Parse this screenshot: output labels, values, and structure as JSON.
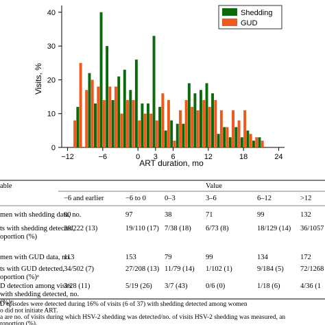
{
  "chart_data": {
    "type": "bar",
    "x": [
      -11,
      -10,
      -9,
      -8,
      -7,
      -6,
      -5,
      -4,
      -3,
      -2,
      -1,
      0,
      1,
      2,
      3,
      4,
      5,
      6,
      7,
      8,
      9,
      10,
      11,
      12,
      13,
      14,
      15,
      16,
      17,
      18,
      19,
      20,
      21
    ],
    "series": [
      {
        "name": "Shedding",
        "color": "#0b6a0b",
        "values": [
          0,
          12,
          0,
          22,
          13,
          40,
          30,
          14,
          21,
          23,
          17,
          26,
          13,
          13,
          33,
          12,
          5,
          8,
          7,
          7,
          19,
          16,
          17,
          19,
          16,
          4,
          6,
          3,
          6,
          3,
          5,
          2,
          3
        ]
      },
      {
        "name": "GUD",
        "color": "#ee5a1e",
        "values": [
          8,
          25,
          17,
          20,
          18,
          14,
          18,
          18,
          10,
          14,
          14,
          8,
          10,
          10,
          8,
          16,
          14,
          2,
          11,
          14,
          12,
          11,
          14,
          12,
          14,
          11,
          6,
          11,
          8,
          11,
          4,
          3,
          2
        ]
      }
    ],
    "xlabel": "ART duration, mo",
    "ylabel": "Visits, %",
    "xlim": [
      -13,
      25
    ],
    "xticks": [
      {
        "value": -12,
        "label": "−12"
      },
      {
        "value": -6,
        "label": "−6"
      },
      0,
      3,
      6,
      12,
      18,
      24
    ],
    "ylim": [
      0,
      42
    ],
    "yticks": [
      0,
      10,
      20,
      30,
      40
    ],
    "legend": "upper right"
  },
  "table": {
    "header": "able",
    "value_header": "Value",
    "columns": [
      "−6 and earlier",
      "−6 to 0",
      "0–3",
      "3–6",
      "6–12",
      ">12"
    ],
    "rows": [
      {
        "label": [
          "men with shedding data, no."
        ],
        "cells": [
          "80",
          "97",
          "38",
          "71",
          "99",
          "132"
        ]
      },
      {
        "label": [
          "ts with shedding detected,",
          "oportion (%)"
        ],
        "cells": [
          "28/222 (13)",
          "19/110 (17)",
          "7/38 (18)",
          "6/73 (8)",
          "18/129 (14)",
          "36/1057"
        ]
      },
      {
        "label": [
          "men with GUD data, no."
        ],
        "cells": [
          "113",
          "153",
          "79",
          "99",
          "134",
          "172"
        ]
      },
      {
        "label": [
          "ts with GUD detected,",
          "oportion (%)ᵃ"
        ],
        "cells": [
          "34/502 (7)",
          "27/208 (13)",
          "11/79 (14)",
          "1/102 (1)",
          "9/184 (5)",
          "72/1268"
        ]
      },
      {
        "label": [
          "D detection among visits",
          "with shedding detected, no.",
          "(%)ᵃ"
        ],
        "cells": [
          "3/28 (11)",
          "5/19 (26)",
          "3/7 (43)",
          "0/6 (0)",
          "1/18 (6)",
          "4/36 (1"
        ]
      }
    ],
    "footnotes": [
      "D episodes were detected during 16% of visits (6 of 37) with shedding detected among women",
      "o did not initiate ART.",
      "a are no. of visits during which HSV-2 shedding was detected/no. of visits HSV-2 shedding was measured, an",
      "roportion (%)."
    ]
  }
}
